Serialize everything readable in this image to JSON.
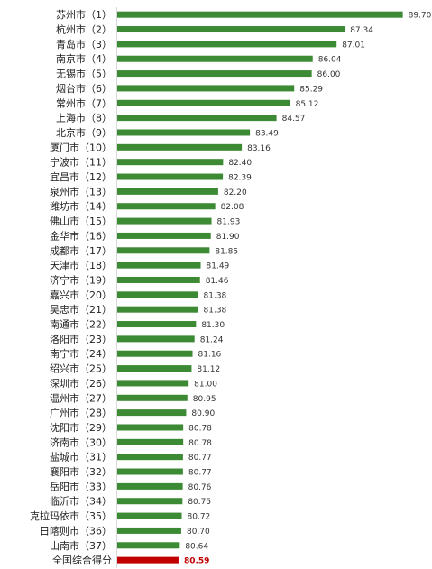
{
  "chart_data": {
    "type": "bar",
    "orientation": "horizontal",
    "title": "",
    "xlabel": "",
    "ylabel": "",
    "xlim": [
      78.1,
      90.3
    ],
    "grid": false,
    "legend": "none",
    "colors": {
      "bar": "#3d8a34",
      "total": "#c00000"
    },
    "categories": [
      "苏州市（1）",
      "杭州市（2）",
      "青岛市（3）",
      "南京市（4）",
      "无锡市（5）",
      "烟台市（6）",
      "常州市（7）",
      "上海市（8）",
      "北京市（9）",
      "厦门市（10）",
      "宁波市（11）",
      "宜昌市（12）",
      "泉州市（13）",
      "潍坊市（14）",
      "佛山市（15）",
      "金华市（16）",
      "成都市（17）",
      "天津市（18）",
      "济宁市（19）",
      "嘉兴市（20）",
      "吴忠市（21）",
      "南通市（22）",
      "洛阳市（23）",
      "南宁市（24）",
      "绍兴市（25）",
      "深圳市（26）",
      "温州市（27）",
      "广州市（28）",
      "沈阳市（29）",
      "济南市（30）",
      "盐城市（31）",
      "襄阳市（32）",
      "岳阳市（33）",
      "临沂市（34）",
      "克拉玛依市（35）",
      "日喀则市（36）",
      "山南市（37）",
      "全国综合得分"
    ],
    "values": [
      89.7,
      87.34,
      87.01,
      86.04,
      86.0,
      85.29,
      85.12,
      84.57,
      83.49,
      83.16,
      82.4,
      82.39,
      82.2,
      82.08,
      81.93,
      81.9,
      81.85,
      81.49,
      81.46,
      81.38,
      81.38,
      81.3,
      81.24,
      81.16,
      81.12,
      81.0,
      80.95,
      80.9,
      80.78,
      80.78,
      80.77,
      80.77,
      80.76,
      80.75,
      80.72,
      80.7,
      80.64,
      80.59
    ],
    "value_labels": [
      "89.70",
      "87.34",
      "87.01",
      "86.04",
      "86.00",
      "85.29",
      "85.12",
      "84.57",
      "83.49",
      "83.16",
      "82.40",
      "82.39",
      "82.20",
      "82.08",
      "81.93",
      "81.90",
      "81.85",
      "81.49",
      "81.46",
      "81.38",
      "81.38",
      "81.30",
      "81.24",
      "81.16",
      "81.12",
      "81.00",
      "80.95",
      "80.90",
      "80.78",
      "80.78",
      "80.77",
      "80.77",
      "80.76",
      "80.75",
      "80.72",
      "80.70",
      "80.64",
      "80.59"
    ]
  }
}
